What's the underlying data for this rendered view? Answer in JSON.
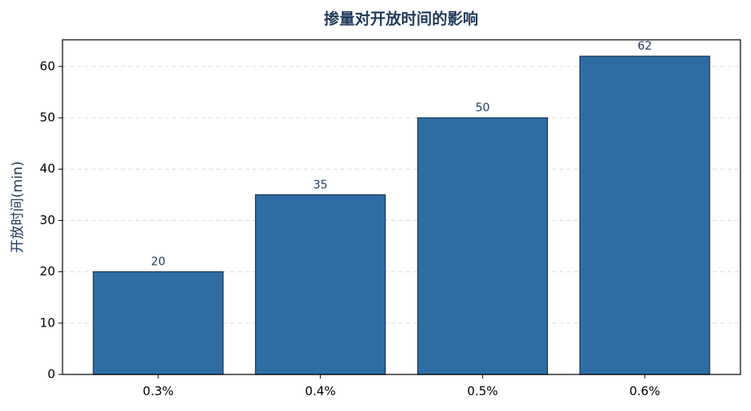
{
  "chart_data": {
    "type": "bar",
    "title": "掺量对开放时间的影响",
    "y_label": "开放时间(min)",
    "categories": [
      "0.3%",
      "0.4%",
      "0.5%",
      "0.6%"
    ],
    "values": [
      20,
      35,
      50,
      62
    ],
    "color": "#2e6da4",
    "edge_color": "#1f3a5a",
    "ylim": [
      0,
      65.2
    ],
    "yticks": [
      0,
      10,
      20,
      30,
      40,
      50,
      60
    ],
    "grid": true
  }
}
